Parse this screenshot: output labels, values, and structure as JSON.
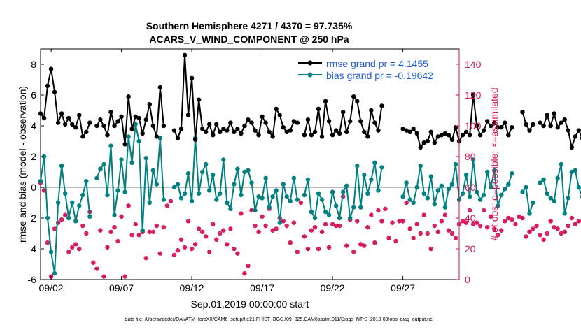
{
  "chart_data": {
    "type": "line",
    "title": [
      "Southern Hemisphere 4271 / 4370 = 97.735%",
      "ACARS_V_WIND_COMPONENT @ 250 hPa"
    ],
    "xlabel": "Sep.01,2019 00:00:00 start",
    "ylabel": "rmse and bias (model - observation)",
    "y2label": "# of obs: o=possible; ×=assimilated",
    "footer": "data file: /Users/raeder/DAI/ATM_forcXX/CAM6_setup/f.e21.FHIST_BGC.f09_025.CAM6assim.011/Diags_NTrS_2019-09/obs_diag_output.nc",
    "xlim": [
      1.25,
      31.0
    ],
    "ylim": [
      -6,
      9
    ],
    "y2lim": [
      0,
      150
    ],
    "x_ticks": [
      2,
      7,
      12,
      17,
      22,
      27
    ],
    "x_tick_labels": [
      "09/02",
      "09/07",
      "09/12",
      "09/17",
      "09/22",
      "09/27"
    ],
    "y_ticks": [
      -6,
      -4,
      -2,
      0,
      2,
      4,
      6,
      8
    ],
    "y_tick_labels": [
      "-6",
      "-4",
      "-2",
      "0",
      "2",
      "4",
      "6",
      "8"
    ],
    "y2_ticks": [
      0,
      20,
      40,
      60,
      80,
      100,
      120,
      140
    ],
    "y2_tick_labels": [
      "0",
      "20",
      "40",
      "60",
      "80",
      "100",
      "120",
      "140"
    ],
    "legend_position": "top-right",
    "colors": {
      "rmse": "#000000",
      "bias": "#008080",
      "obs": "#d6135a",
      "zero_line": "#bbbbbb",
      "legend_text": "#1f5fd6"
    },
    "x_start": 1.25,
    "x_step": 0.25,
    "series": [
      {
        "name": "rmse grand pr = 4.1455",
        "values": [
          4.8,
          4.5,
          6.6,
          7.7,
          6.2,
          4.2,
          4.8,
          4.1,
          4.5,
          4.1,
          3.9,
          4.7,
          3.3,
          3.6,
          4.2,
          null,
          4.0,
          4.4,
          4.0,
          3.4,
          4.9,
          4.0,
          4.3,
          4.6,
          2.8,
          5.9,
          3.8,
          4.6,
          4.5,
          3.5,
          4.4,
          5.4,
          4.0,
          3.3,
          6.5,
          4.0,
          null,
          null,
          3.7,
          3.2,
          3.8,
          8.6,
          4.7,
          7.1,
          3.1,
          5.7,
          3.8,
          3.6,
          4.1,
          3.4,
          4.1,
          3.6,
          3.8,
          3.7,
          4.2,
          3.6,
          3.8,
          3.5,
          4.0,
          4.4,
          4.2,
          3.7,
          3.4,
          4.6,
          4.2,
          3.6,
          3.3,
          5.1,
          4.7,
          3.9,
          3.6,
          3.7,
          4.3,
          4.2,
          null,
          3.4,
          4.4,
          3.4,
          3.6,
          5.1,
          3.3,
          5.6,
          4.3,
          3.4,
          3.7,
          3.5,
          4.9,
          3.6,
          4.3,
          5.9,
          5.6,
          4.3,
          3.6,
          3.3,
          5.0,
          4.2,
          3.7,
          5.3,
          null,
          null,
          null,
          null,
          null,
          3.8,
          3.7,
          3.6,
          3.8,
          3.5,
          2.6,
          2.9,
          3.0,
          3.6,
          2.9,
          3.3,
          3.4,
          3.5,
          3.4,
          3.1,
          3.9,
          3.0,
          3.4,
          3.6,
          3.4,
          6.0,
          4.0,
          3.4,
          3.7,
          4.3,
          4.0,
          4.2,
          3.9,
          3.9,
          4.2,
          3.4,
          3.9,
          null,
          null,
          4.9,
          4.1,
          3.7,
          4.1,
          null,
          4.2,
          4.0,
          4.7,
          4.0,
          4.8,
          3.9,
          4.2,
          4.4,
          3.7,
          2.6,
          3.3,
          3.7,
          3.2,
          3.0,
          3.2,
          3.4,
          3.6,
          3.5
        ]
      },
      {
        "name": "bias grand pr = -0.19642",
        "values": [
          0.4,
          2.0,
          -2.0,
          -4.2,
          -5.6,
          -1.0,
          1.4,
          -0.4,
          -2.0,
          -1.0,
          -2.2,
          -1.2,
          -0.5,
          0.4,
          -1.9,
          null,
          0.6,
          1.2,
          1.5,
          -0.5,
          2.7,
          -1.8,
          -0.2,
          1.8,
          -0.3,
          3.3,
          1.6,
          4.1,
          3.0,
          -2.8,
          1.9,
          -1.0,
          1.1,
          0.2,
          3.2,
          -0.8,
          null,
          null,
          0.0,
          0.2,
          -0.7,
          -0.4,
          0.9,
          -0.9,
          3.2,
          -0.4,
          1.0,
          1.5,
          -0.2,
          0.8,
          -0.8,
          -0.4,
          1.8,
          -1.0,
          -1.4,
          0.2,
          1.2,
          -0.5,
          1.0,
          1.1,
          0.3,
          -1.5,
          -0.6,
          -0.7,
          0.6,
          -1.3,
          -0.6,
          -0.2,
          -2.3,
          0.2,
          -0.6,
          -0.9,
          0.6,
          -0.8,
          null,
          -0.5,
          0.5,
          -1.6,
          -2.0,
          -0.4,
          -0.8,
          -1.6,
          -1.8,
          -0.3,
          -1.2,
          -2.0,
          -0.3,
          0.1,
          -2.0,
          -1.3,
          1.4,
          -1.3,
          0.8,
          -0.4,
          0.5,
          1.6,
          -0.2,
          1.3,
          null,
          null,
          null,
          null,
          null,
          -0.6,
          0.3,
          -0.8,
          -1.0,
          0.0,
          1.4,
          -0.4,
          -0.7,
          0.7,
          -1.1,
          -0.2,
          0.1,
          -1.3,
          -0.1,
          0.2,
          1.5,
          -0.8,
          -0.4,
          0.8,
          -0.6,
          1.8,
          -0.3,
          -0.8,
          -0.5,
          1.0,
          0.0,
          1.1,
          -1.2,
          -0.5,
          -0.1,
          0.2,
          0.9,
          null,
          null,
          -0.3,
          0.0,
          -1.7,
          -1.0,
          null,
          0.3,
          0.5,
          -0.4,
          -0.7,
          -0.9,
          0.6,
          1.5,
          -1.7,
          -0.7,
          1.0,
          1.1,
          0.0,
          -0.6,
          0.3,
          0.6,
          -0.5,
          0.7,
          0.4
        ]
      }
    ],
    "obs_possible": [
      63,
      58,
      24,
      2,
      33,
      37,
      39,
      42,
      18,
      21,
      23,
      20,
      35,
      30,
      44,
      11,
      7,
      32,
      2,
      21,
      31,
      34,
      25,
      41,
      2,
      48,
      29,
      36,
      29,
      31,
      14,
      31,
      31,
      35,
      17,
      34,
      48,
      51,
      16,
      19,
      26,
      21,
      38,
      20,
      23,
      33,
      31,
      28,
      18,
      36,
      26,
      30,
      32,
      23,
      33,
      20,
      17,
      43,
      4,
      9,
      45,
      35,
      31,
      41,
      35,
      46,
      32,
      33,
      40,
      38,
      35,
      24,
      37,
      18,
      50,
      28,
      20,
      32,
      34,
      20,
      31,
      36,
      21,
      36,
      35,
      35,
      54,
      22,
      39,
      18,
      38,
      23,
      22,
      34,
      42,
      24,
      45,
      38,
      46,
      27,
      37,
      25,
      38,
      38,
      50,
      33,
      27,
      36,
      30,
      42,
      30,
      20,
      35,
      31,
      38,
      42,
      32,
      30,
      27,
      36,
      38,
      37,
      45,
      36,
      37,
      35,
      45,
      34,
      41,
      33,
      29,
      32,
      38,
      40,
      39,
      36,
      41,
      40,
      28,
      31,
      33,
      35,
      29,
      26,
      30,
      38,
      34,
      33,
      30,
      31,
      35,
      40,
      36,
      38
    ]
  }
}
